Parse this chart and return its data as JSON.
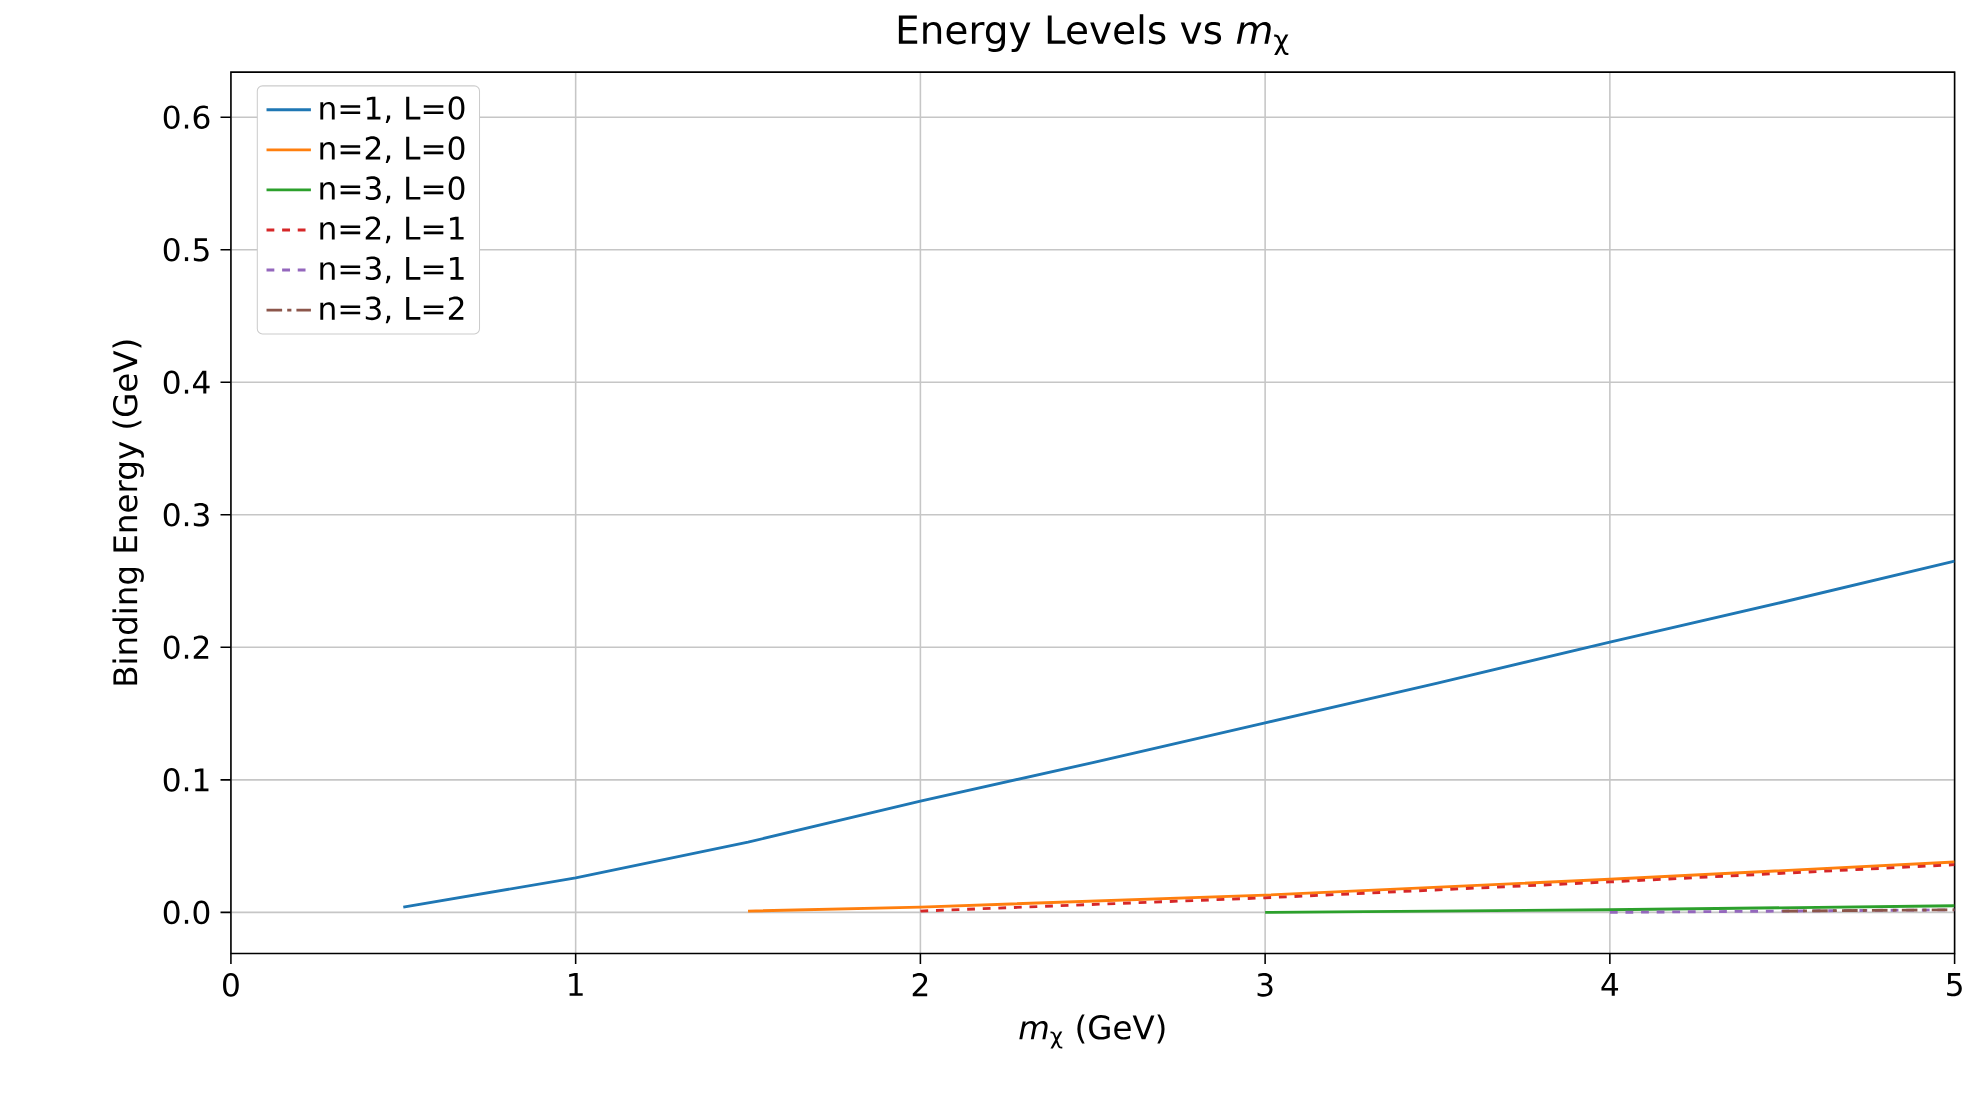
{
  "chart_data": {
    "type": "line",
    "title": "Energy Levels vs *m*$_{χ}$",
    "xlabel": "*m*$_{χ}$ (GeV)",
    "ylabel": "Binding Energy (GeV)",
    "xlim": [
      0,
      5
    ],
    "ylim": [
      -0.031,
      0.634
    ],
    "xticks": [
      0,
      1,
      2,
      3,
      4,
      5
    ],
    "yticks": [
      {
        "value": 0,
        "label": "0.0"
      },
      0.1,
      0.2,
      0.3,
      0.4,
      0.5,
      0.6
    ],
    "grid": true,
    "legend": "top left",
    "series": [
      {
        "name": "n=1, L=0",
        "color": "#1f77b4",
        "line_style": "solid",
        "x": [
          0.5,
          1,
          1.5,
          2,
          2.5,
          3,
          3.5,
          4,
          4.5,
          5
        ],
        "values": [
          0.004,
          0.026,
          0.053,
          0.084,
          0.113,
          0.143,
          0.173,
          0.204,
          0.234,
          0.265
        ]
      },
      {
        "name": "n=2, L=0",
        "color": "#ff7f0e",
        "line_style": "solid",
        "x": [
          1.5,
          2,
          3,
          4,
          5
        ],
        "values": [
          0.001,
          0.004,
          0.013,
          0.025,
          0.038
        ]
      },
      {
        "name": "n=3, L=0",
        "color": "#2ca02c",
        "line_style": "solid",
        "x": [
          3,
          4,
          5
        ],
        "values": [
          0.0,
          0.002,
          0.005
        ]
      },
      {
        "name": "n=2, L=1",
        "color": "#d62728",
        "line_style": "dashed",
        "x": [
          2,
          3,
          4,
          5
        ],
        "values": [
          0.001,
          0.011,
          0.023,
          0.036
        ]
      },
      {
        "name": "n=3, L=1",
        "color": "#9467bd",
        "line_style": "dashed",
        "x": [
          4,
          5
        ],
        "values": [
          0.0,
          0.002
        ]
      },
      {
        "name": "n=3, L=2",
        "color": "#8c564b",
        "line_style": "dashdot",
        "x": [
          4.5,
          5
        ],
        "values": [
          0.001,
          0.002
        ]
      }
    ]
  }
}
